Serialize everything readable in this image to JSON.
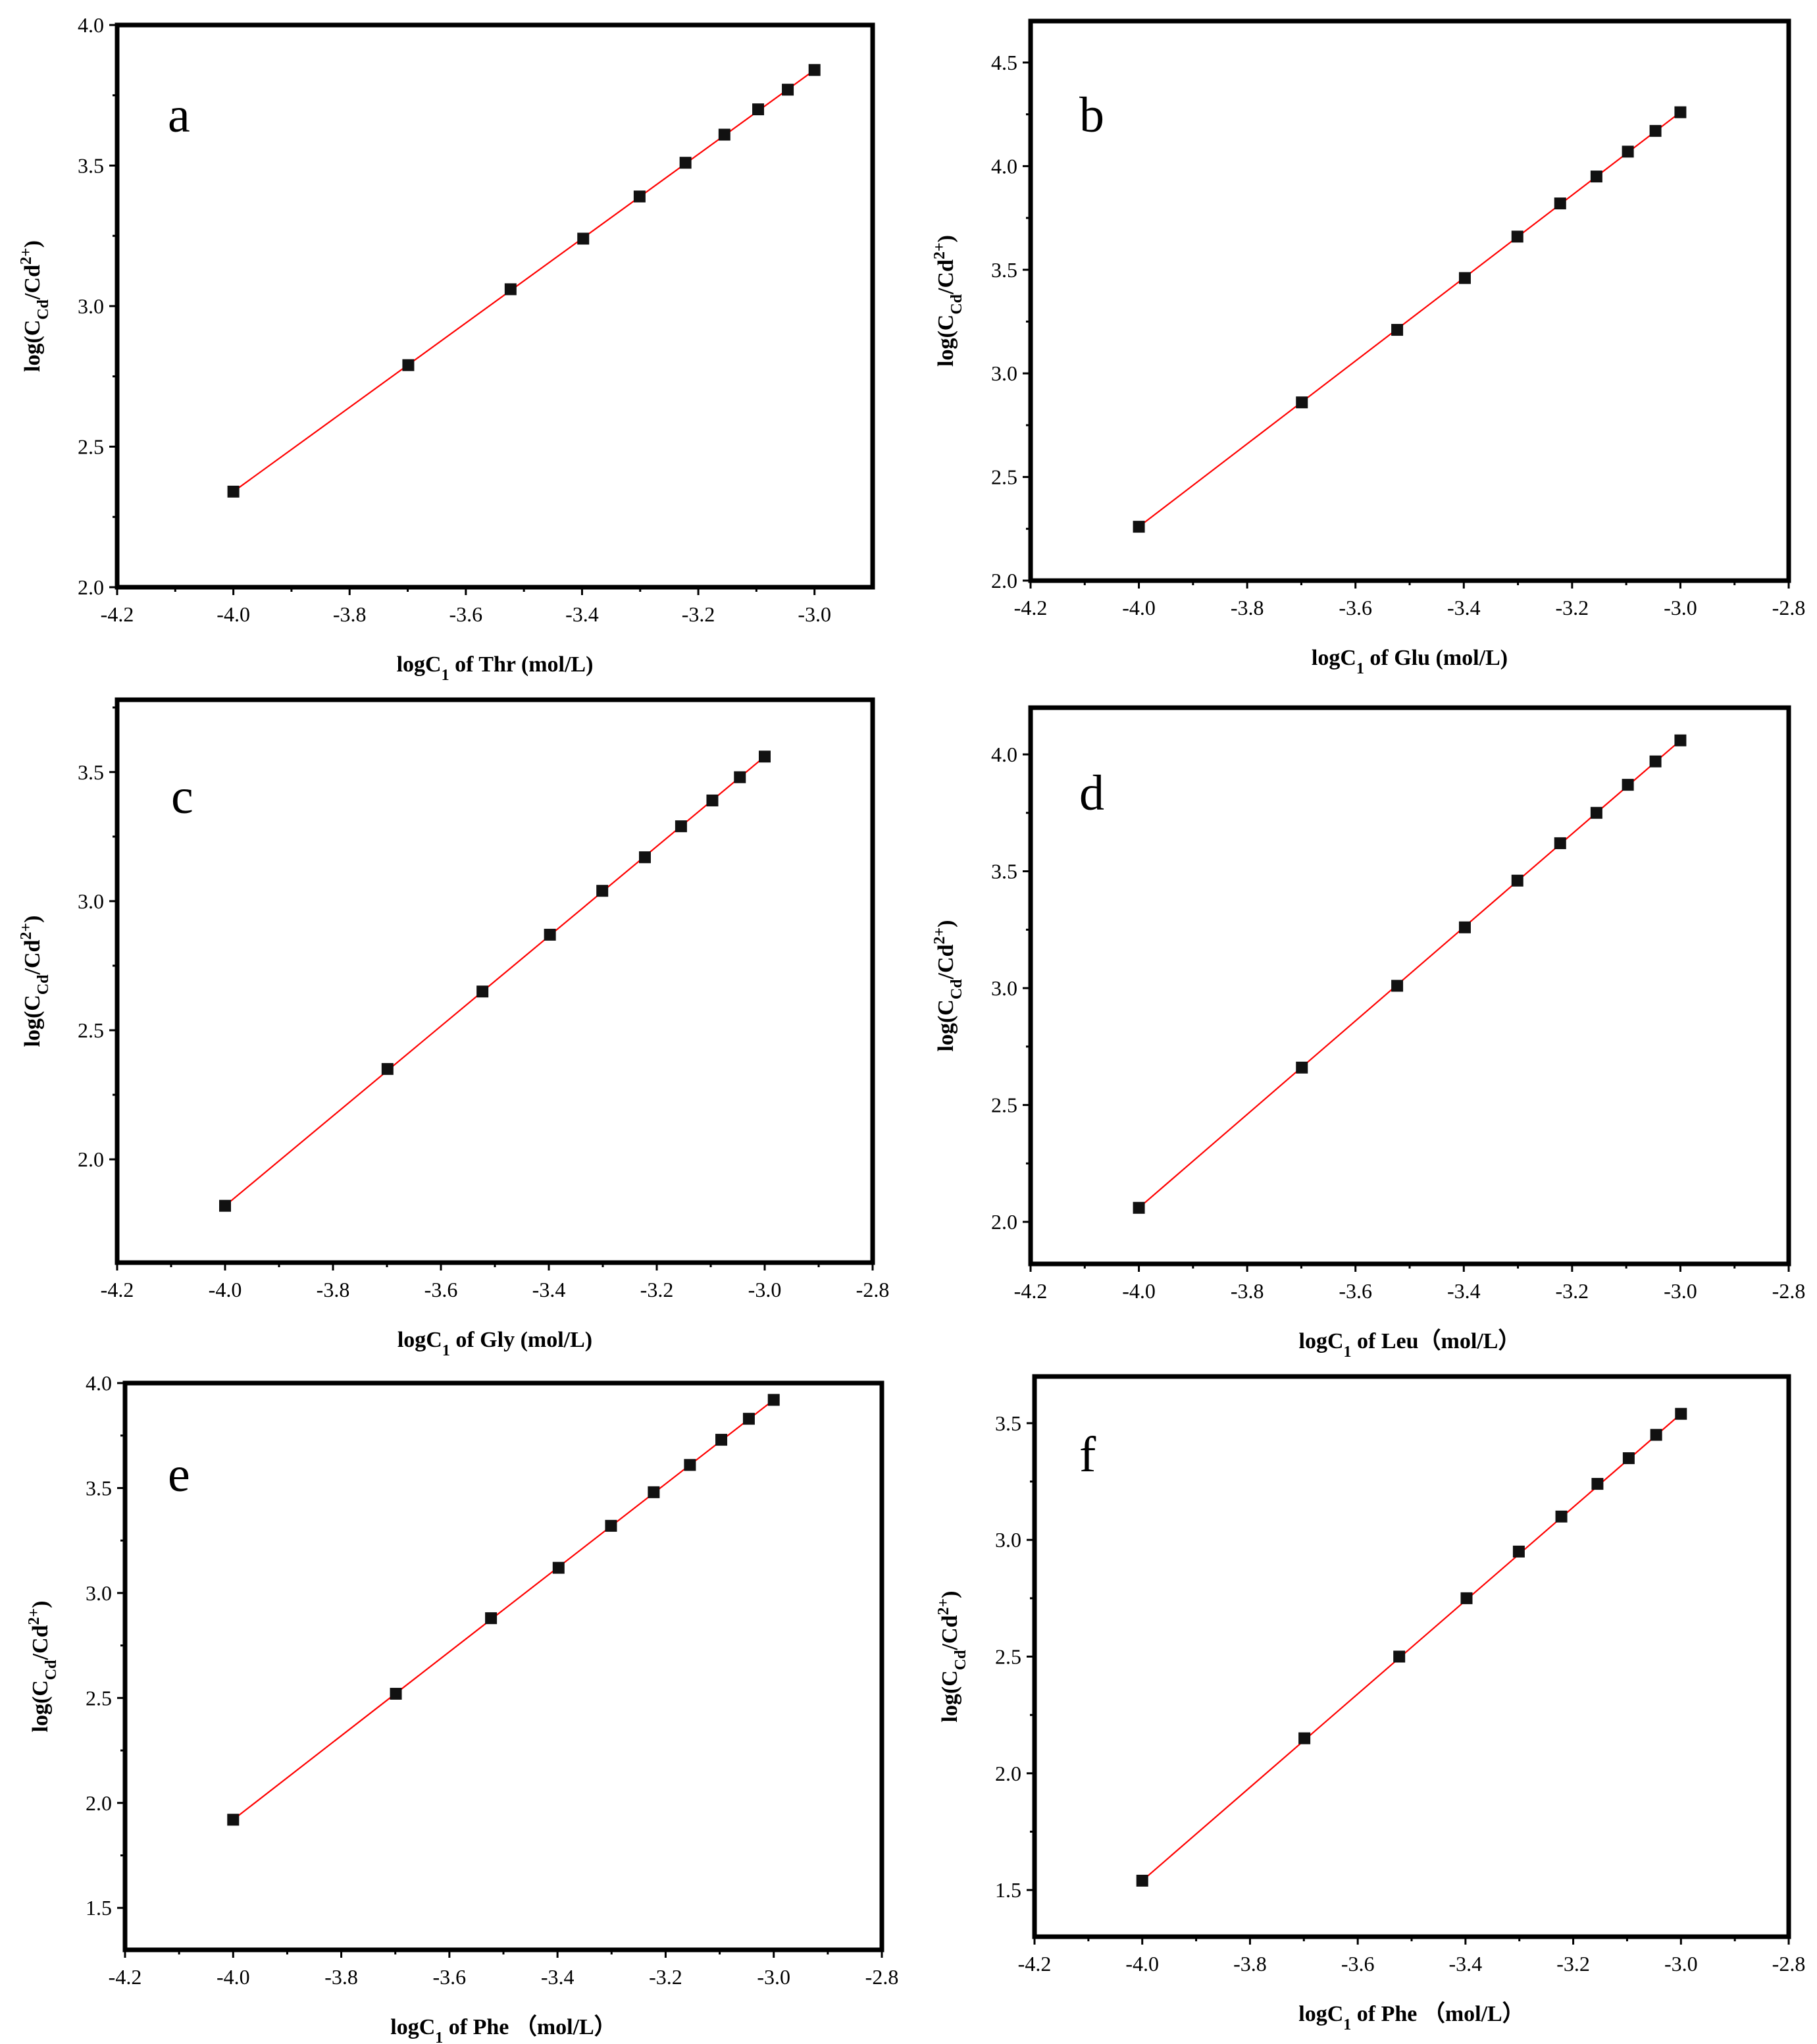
{
  "figure": {
    "description_label": "Six log-log plots of Cd complexation vs amino acid concentration"
  },
  "chart_data": [
    {
      "panel": "a",
      "type": "scatter",
      "xlabel": "logC1 of Thr (mol/L)",
      "xlabel_parts": {
        "pre": "logC",
        "sub": "1",
        "post": " of Thr (mol/L)"
      },
      "ylabel": "log(CCd/Cd2+)",
      "xlim": [
        -4.2,
        -2.9
      ],
      "ylim": [
        2.0,
        4.0
      ],
      "xticks": [
        -4.2,
        -4.0,
        -3.8,
        -3.6,
        -3.4,
        -3.2,
        -3.0
      ],
      "xtick_labels": [
        "-4.2",
        "-4.0",
        "-3.8",
        "-3.6",
        "-3.4",
        "-3.2",
        "-3.0"
      ],
      "yticks": [
        2.0,
        2.5,
        3.0,
        3.5,
        4.0
      ],
      "ytick_labels": [
        "2.0",
        "2.5",
        "3.0",
        "3.5",
        "4.0"
      ],
      "x": [
        -4.0,
        -3.699,
        -3.523,
        -3.398,
        -3.301,
        -3.222,
        -3.155,
        -3.097,
        -3.046,
        -3.0
      ],
      "y": [
        2.34,
        2.79,
        3.06,
        3.24,
        3.39,
        3.51,
        3.61,
        3.7,
        3.77,
        3.84
      ],
      "fit_line": [
        [
          -4.0,
          2.34
        ],
        [
          -3.0,
          3.84
        ]
      ]
    },
    {
      "panel": "b",
      "type": "scatter",
      "xlabel": "logC1 of Glu (mol/L)",
      "xlabel_parts": {
        "pre": "logC",
        "sub": "1",
        "post": " of Glu (mol/L)"
      },
      "ylabel": "log(CCd/Cd2+)",
      "xlim": [
        -4.2,
        -2.8
      ],
      "ylim": [
        2.0,
        4.7
      ],
      "xticks": [
        -4.2,
        -4.0,
        -3.8,
        -3.6,
        -3.4,
        -3.2,
        -3.0,
        -2.8
      ],
      "xtick_labels": [
        "-4.2",
        "-4.0",
        "-3.8",
        "-3.6",
        "-3.4",
        "-3.2",
        "-3.0",
        "-2.8"
      ],
      "yticks": [
        2.0,
        2.5,
        3.0,
        3.5,
        4.0,
        4.5
      ],
      "ytick_labels": [
        "2.0",
        "2.5",
        "3.0",
        "3.5",
        "4.0",
        "4.5"
      ],
      "x": [
        -4.0,
        -3.699,
        -3.523,
        -3.398,
        -3.301,
        -3.222,
        -3.155,
        -3.097,
        -3.046,
        -3.0
      ],
      "y": [
        2.26,
        2.86,
        3.21,
        3.46,
        3.66,
        3.82,
        3.95,
        4.07,
        4.17,
        4.26
      ],
      "fit_line": [
        [
          -4.0,
          2.26
        ],
        [
          -3.0,
          4.26
        ]
      ]
    },
    {
      "panel": "c",
      "type": "scatter",
      "xlabel": "logC1 of Gly (mol/L)",
      "xlabel_parts": {
        "pre": "logC",
        "sub": "1",
        "post": " of Gly (mol/L)"
      },
      "ylabel": "log(CCd/Cd2+)",
      "xlim": [
        -4.2,
        -2.8
      ],
      "ylim": [
        1.6,
        3.78
      ],
      "xticks": [
        -4.2,
        -4.0,
        -3.8,
        -3.6,
        -3.4,
        -3.2,
        -3.0,
        -2.8
      ],
      "xtick_labels": [
        "-4.2",
        "-4.0",
        "-3.8",
        "-3.6",
        "-3.4",
        "-3.2",
        "-3.0",
        "-2.8"
      ],
      "yticks": [
        2.0,
        2.5,
        3.0,
        3.5
      ],
      "ytick_labels": [
        "2.0",
        "2.5",
        "3.0",
        "3.5"
      ],
      "x": [
        -4.0,
        -3.699,
        -3.523,
        -3.398,
        -3.301,
        -3.222,
        -3.155,
        -3.097,
        -3.046,
        -3.0
      ],
      "y": [
        1.82,
        2.35,
        2.65,
        2.87,
        3.04,
        3.17,
        3.29,
        3.39,
        3.48,
        3.56
      ],
      "fit_line": [
        [
          -4.0,
          1.82
        ],
        [
          -3.0,
          3.56
        ]
      ]
    },
    {
      "panel": "d",
      "type": "scatter",
      "xlabel": "logC1 of Leu (mol/L)",
      "xlabel_parts": {
        "pre": "logC",
        "sub": "1",
        "post": " of  Leu（mol/L）"
      },
      "ylabel": "log(CCd/Cd2+)",
      "xlim": [
        -4.2,
        -2.8
      ],
      "ylim": [
        1.82,
        4.2
      ],
      "xticks": [
        -4.2,
        -4.0,
        -3.8,
        -3.6,
        -3.4,
        -3.2,
        -3.0,
        -2.8
      ],
      "xtick_labels": [
        "-4.2",
        "-4.0",
        "-3.8",
        "-3.6",
        "-3.4",
        "-3.2",
        "-3.0",
        "-2.8"
      ],
      "yticks": [
        2.0,
        2.5,
        3.0,
        3.5,
        4.0
      ],
      "ytick_labels": [
        "2.0",
        "2.5",
        "3.0",
        "3.5",
        "4.0"
      ],
      "x": [
        -4.0,
        -3.699,
        -3.523,
        -3.398,
        -3.301,
        -3.222,
        -3.155,
        -3.097,
        -3.046,
        -3.0
      ],
      "y": [
        2.06,
        2.66,
        3.01,
        3.26,
        3.46,
        3.62,
        3.75,
        3.87,
        3.97,
        4.06
      ],
      "fit_line": [
        [
          -4.0,
          2.06
        ],
        [
          -3.0,
          4.06
        ]
      ]
    },
    {
      "panel": "e",
      "type": "scatter",
      "xlabel": "logC1 of Phe (mol/L)",
      "xlabel_parts": {
        "pre": "logC",
        "sub": "1",
        "post": " of Phe （mol/L）"
      },
      "ylabel": "log(CCd/Cd2+)",
      "xlim": [
        -4.2,
        -2.8
      ],
      "ylim": [
        1.3,
        4.0
      ],
      "xticks": [
        -4.2,
        -4.0,
        -3.8,
        -3.6,
        -3.4,
        -3.2,
        -3.0,
        -2.8
      ],
      "xtick_labels": [
        "-4.2",
        "-4.0",
        "-3.8",
        "-3.6",
        "-3.4",
        "-3.2",
        "-3.0",
        "-2.8"
      ],
      "yticks": [
        1.5,
        2.0,
        2.5,
        3.0,
        3.5,
        4.0
      ],
      "ytick_labels": [
        "1.5",
        "2.0",
        "2.5",
        "3.0",
        "3.5",
        "4.0"
      ],
      "x": [
        -4.0,
        -3.699,
        -3.523,
        -3.398,
        -3.301,
        -3.222,
        -3.155,
        -3.097,
        -3.046,
        -3.0
      ],
      "y": [
        1.92,
        2.52,
        2.88,
        3.12,
        3.32,
        3.48,
        3.61,
        3.73,
        3.83,
        3.92
      ],
      "fit_line": [
        [
          -4.0,
          1.92
        ],
        [
          -3.0,
          3.92
        ]
      ]
    },
    {
      "panel": "f",
      "type": "scatter",
      "xlabel": "logC1 of Phe (mol/L)",
      "xlabel_parts": {
        "pre": "logC",
        "sub": "1",
        "post": " of Phe （mol/L）"
      },
      "ylabel": "log(CCd/Cd2+)",
      "xlim": [
        -4.2,
        -2.8
      ],
      "ylim": [
        1.3,
        3.7
      ],
      "xticks": [
        -4.2,
        -4.0,
        -3.8,
        -3.6,
        -3.4,
        -3.2,
        -3.0,
        -2.8
      ],
      "xtick_labels": [
        "-4.2",
        "-4.0",
        "-3.8",
        "-3.6",
        "-3.4",
        "-3.2",
        "-3.0",
        "-2.8"
      ],
      "yticks": [
        1.5,
        2.0,
        2.5,
        3.0,
        3.5
      ],
      "ytick_labels": [
        "1.5",
        "2.0",
        "2.5",
        "3.0",
        "3.5"
      ],
      "x": [
        -4.0,
        -3.699,
        -3.523,
        -3.398,
        -3.301,
        -3.222,
        -3.155,
        -3.097,
        -3.046,
        -3.0
      ],
      "y": [
        1.54,
        2.15,
        2.5,
        2.75,
        2.95,
        3.1,
        3.24,
        3.35,
        3.45,
        3.54
      ],
      "fit_line": [
        [
          -4.0,
          1.54
        ],
        [
          -3.0,
          3.54
        ]
      ]
    }
  ]
}
